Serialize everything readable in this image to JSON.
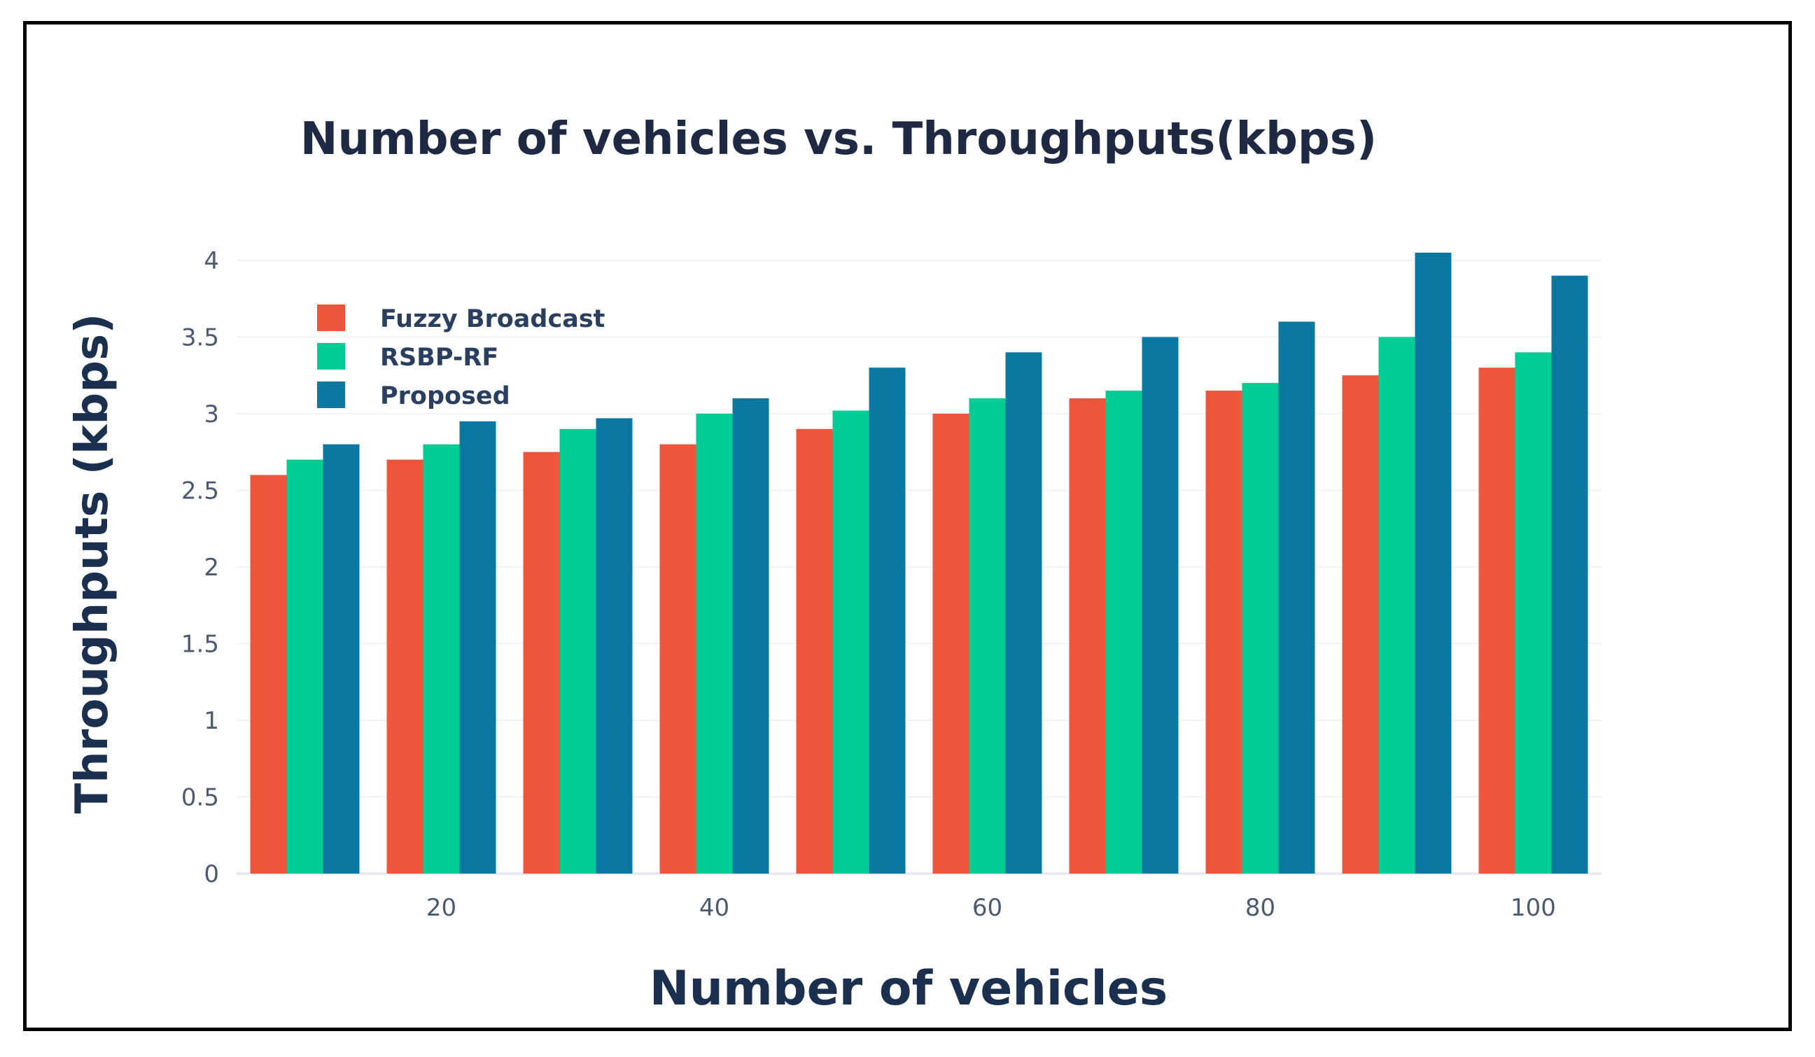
{
  "chart_data": {
    "type": "bar",
    "title": "Number of vehicles vs. Throughputs(kbps)",
    "xlabel": "Number of vehicles",
    "ylabel": "Throughputs (kbps)",
    "x": [
      10,
      20,
      30,
      40,
      50,
      60,
      70,
      80,
      90,
      100
    ],
    "xticks": [
      20,
      40,
      60,
      80,
      100
    ],
    "yticks": [
      "0",
      "0.5",
      "1",
      "1.5",
      "2",
      "2.5",
      "3",
      "3.5",
      "4"
    ],
    "ylim": [
      0,
      4.1
    ],
    "grid": true,
    "legend_position": "top-left",
    "series": [
      {
        "name": "Fuzzy Broadcast",
        "color": "#ef553b",
        "values": [
          2.6,
          2.7,
          2.75,
          2.8,
          2.9,
          3.0,
          3.1,
          3.15,
          3.25,
          3.3
        ]
      },
      {
        "name": "RSBP-RF",
        "color": "#00cc96",
        "values": [
          2.7,
          2.8,
          2.9,
          3.0,
          3.02,
          3.1,
          3.15,
          3.2,
          3.5,
          3.4
        ]
      },
      {
        "name": "Proposed",
        "color": "#0a78a0",
        "values": [
          2.8,
          2.95,
          2.97,
          3.1,
          3.3,
          3.4,
          3.5,
          3.6,
          4.05,
          3.9
        ]
      }
    ]
  }
}
